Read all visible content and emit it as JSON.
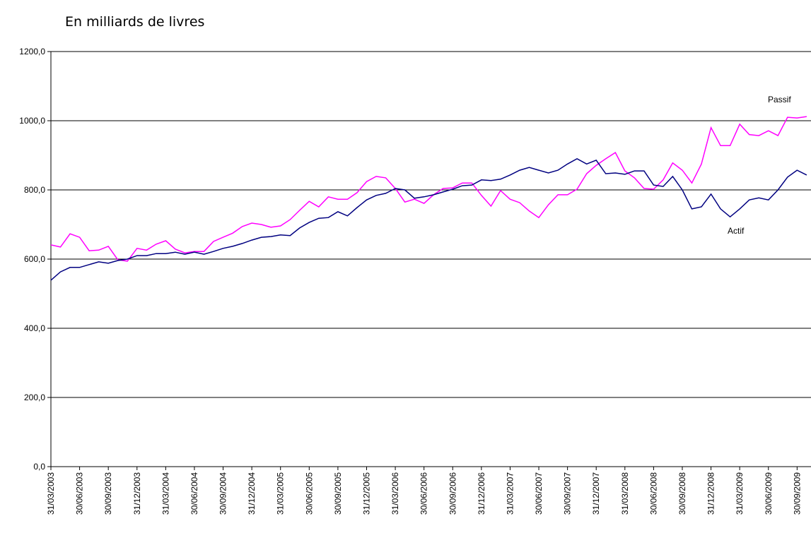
{
  "chart_data": {
    "type": "line",
    "title": "En milliards de livres",
    "categories": [
      "31/03/2003",
      null,
      null,
      "30/06/2003",
      null,
      null,
      "30/09/2003",
      null,
      null,
      "31/12/2003",
      null,
      null,
      "31/03/2004",
      null,
      null,
      "30/06/2004",
      null,
      null,
      "30/09/2004",
      null,
      null,
      "31/12/2004",
      null,
      null,
      "31/03/2005",
      null,
      null,
      "30/06/2005",
      null,
      null,
      "30/09/2005",
      null,
      null,
      "31/12/2005",
      null,
      null,
      "31/03/2006",
      null,
      null,
      "30/06/2006",
      null,
      null,
      "30/09/2006",
      null,
      null,
      "31/12/2006",
      null,
      null,
      "31/03/2007",
      null,
      null,
      "30/06/2007",
      null,
      null,
      "30/09/2007",
      null,
      null,
      "31/12/2007",
      null,
      null,
      "31/03/2008",
      null,
      null,
      "30/06/2008",
      null,
      null,
      "30/09/2008",
      null,
      null,
      "31/12/2008",
      null,
      null,
      "31/03/2009",
      null,
      null,
      "30/06/2009",
      null,
      null,
      "30/09/2009",
      null
    ],
    "series": [
      {
        "name": "Passif",
        "color": "#ff00ff",
        "values": [
          641,
          635,
          673,
          663,
          624,
          626,
          637,
          598,
          594,
          631,
          626,
          643,
          653,
          629,
          618,
          622,
          622,
          651,
          663,
          675,
          694,
          704,
          700,
          692,
          696,
          714,
          741,
          767,
          751,
          780,
          773,
          773,
          792,
          824,
          839,
          835,
          804,
          765,
          773,
          761,
          786,
          804,
          806,
          820,
          820,
          784,
          753,
          798,
          773,
          763,
          739,
          720,
          757,
          786,
          786,
          802,
          847,
          871,
          890,
          908,
          855,
          835,
          804,
          802,
          829,
          878,
          857,
          820,
          875,
          980,
          928,
          928,
          990,
          960,
          957,
          971,
          957,
          1010,
          1008,
          1012
        ]
      },
      {
        "name": "Actif",
        "color": "#000080",
        "values": [
          539,
          563,
          576,
          576,
          584,
          592,
          588,
          596,
          600,
          610,
          610,
          616,
          616,
          620,
          614,
          620,
          614,
          622,
          631,
          637,
          645,
          655,
          663,
          665,
          670,
          668,
          690,
          706,
          718,
          720,
          737,
          725,
          749,
          771,
          784,
          790,
          804,
          800,
          776,
          780,
          786,
          794,
          802,
          812,
          814,
          829,
          827,
          831,
          843,
          857,
          865,
          857,
          849,
          857,
          875,
          890,
          875,
          886,
          847,
          849,
          845,
          855,
          855,
          814,
          810,
          839,
          800,
          745,
          751,
          788,
          745,
          722,
          745,
          771,
          777,
          771,
          800,
          837,
          857,
          843
        ]
      }
    ],
    "ylim": [
      0,
      1200
    ],
    "yticks": [
      {
        "value": 0,
        "label": "0,0"
      },
      {
        "value": 200,
        "label": "200,0"
      },
      {
        "value": 400,
        "label": "400,0"
      },
      {
        "value": 600,
        "label": "600,0"
      },
      {
        "value": 800,
        "label": "800,0"
      },
      {
        "value": 1000,
        "label": "1000,0"
      },
      {
        "value": 1200,
        "label": "1200,0"
      }
    ],
    "grid": true
  }
}
